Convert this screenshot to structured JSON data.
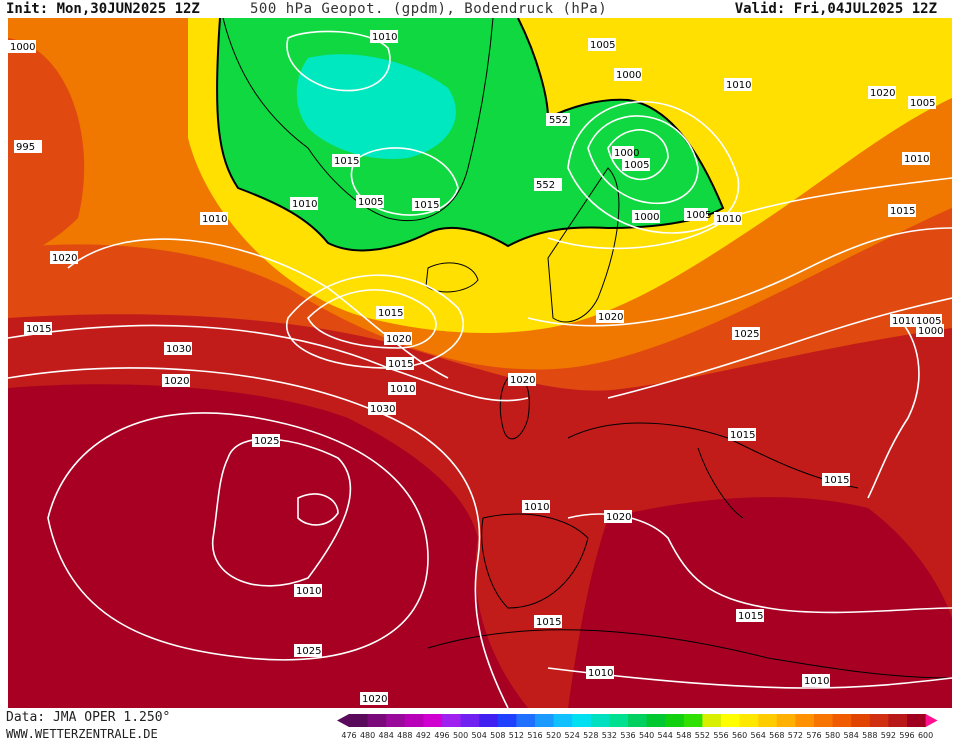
{
  "header": {
    "init": "Init: Mon,30JUN2025 12Z",
    "title": "500 hPa Geopot. (gpdm), Bodendruck (hPa)",
    "valid": "Valid: Fri,04JUL2025 12Z"
  },
  "footer": {
    "data_source": "Data: JMA OPER 1.250°",
    "website": "WWW.WETTERZENTRALE.DE"
  },
  "legend": {
    "values": [
      "476",
      "480",
      "484",
      "488",
      "492",
      "496",
      "500",
      "504",
      "508",
      "512",
      "516",
      "520",
      "524",
      "528",
      "532",
      "536",
      "540",
      "544",
      "548",
      "552",
      "556",
      "560",
      "564",
      "568",
      "572",
      "576",
      "580",
      "584",
      "588",
      "592",
      "596",
      "600"
    ],
    "colors": [
      "#5a0a5a",
      "#7a0a7a",
      "#9a0a9a",
      "#b800b8",
      "#d000d0",
      "#a020f0",
      "#7020f0",
      "#4020f0",
      "#2040ff",
      "#2070ff",
      "#1a9aff",
      "#10c0ff",
      "#00e0f0",
      "#00e0c0",
      "#00e090",
      "#00d060",
      "#00c830",
      "#10d010",
      "#30e000",
      "#d8f000",
      "#ffff00",
      "#ffe800",
      "#ffcc00",
      "#ffb000",
      "#ff9000",
      "#f87400",
      "#f05a00",
      "#e04400",
      "#d03010",
      "#b81818",
      "#a00020",
      "#ff1090"
    ]
  },
  "map": {
    "contour_552_label": "552",
    "isobar_labels": [
      "1000",
      "1010",
      "1005",
      "1000",
      "1010",
      "1020",
      "1005",
      "995",
      "1000",
      "1005",
      "1015",
      "1010",
      "552",
      "1010",
      "1005",
      "1015",
      "1010",
      "1000",
      "1005",
      "1010",
      "1015",
      "1020",
      "1015",
      "1020",
      "1015",
      "1020",
      "1025",
      "1010",
      "1005",
      "1000",
      "1030",
      "1015",
      "1020",
      "1020",
      "1010",
      "1030",
      "1025",
      "1015",
      "1015",
      "1010",
      "1020",
      "1010"
    ],
    "colors": {
      "very_warm": "#a80022",
      "warm": "#c21c1a",
      "orange_red": "#e04a10",
      "orange": "#f07800",
      "yellow": "#ffe000",
      "green": "#10d840",
      "cyan": "#00e8c0",
      "isobar": "#ffffff",
      "coast": "#000000"
    }
  }
}
